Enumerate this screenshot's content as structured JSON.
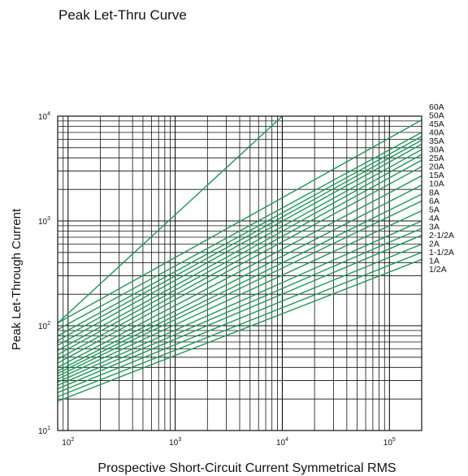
{
  "chart_data": {
    "type": "line",
    "title": "Peak Let-Thru Curve",
    "xlabel": "Prospective Short-Circuit Current Symmetrical RMS",
    "ylabel": "Peak Let-Through Current",
    "x_scale": "log",
    "y_scale": "log",
    "xlim": [
      80,
      200000
    ],
    "ylim": [
      10,
      10000
    ],
    "x_ticks": [
      {
        "base": "10",
        "exp": "2",
        "value": 100
      },
      {
        "base": "10",
        "exp": "3",
        "value": 1000
      },
      {
        "base": "10",
        "exp": "4",
        "value": 10000
      },
      {
        "base": "10",
        "exp": "5",
        "value": 100000
      }
    ],
    "y_ticks": [
      {
        "base": "10",
        "exp": "1",
        "value": 10
      },
      {
        "base": "10",
        "exp": "2",
        "value": 100
      },
      {
        "base": "10",
        "exp": "3",
        "value": 1000
      },
      {
        "base": "10",
        "exp": "4",
        "value": 10000
      }
    ],
    "grid": true,
    "line_color": "#1a9a55",
    "asymptote": {
      "x": [
        80,
        10000
      ],
      "y": [
        106,
        10000
      ]
    },
    "series": [
      {
        "name": "60A",
        "x": [
          80,
          200000
        ],
        "y": [
          106,
          9200
        ]
      },
      {
        "name": "50A",
        "x": [
          80,
          200000
        ],
        "y": [
          92,
          7000
        ]
      },
      {
        "name": "45A",
        "x": [
          80,
          200000
        ],
        "y": [
          80,
          6400
        ]
      },
      {
        "name": "40A",
        "x": [
          80,
          200000
        ],
        "y": [
          72,
          5900
        ]
      },
      {
        "name": "35A",
        "x": [
          80,
          200000
        ],
        "y": [
          65,
          5400
        ]
      },
      {
        "name": "30A",
        "x": [
          80,
          200000
        ],
        "y": [
          58,
          4800
        ]
      },
      {
        "name": "25A",
        "x": [
          80,
          200000
        ],
        "y": [
          53,
          4300
        ]
      },
      {
        "name": "20A",
        "x": [
          80,
          200000
        ],
        "y": [
          48,
          3800
        ]
      },
      {
        "name": "15A",
        "x": [
          80,
          200000
        ],
        "y": [
          44,
          3300
        ]
      },
      {
        "name": "10A",
        "x": [
          80,
          200000
        ],
        "y": [
          40,
          2700
        ]
      },
      {
        "name": "8A",
        "x": [
          80,
          200000
        ],
        "y": [
          37,
          2200
        ]
      },
      {
        "name": "6A",
        "x": [
          80,
          200000
        ],
        "y": [
          35,
          1800
        ]
      },
      {
        "name": "5A",
        "x": [
          80,
          200000
        ],
        "y": [
          33,
          1550
        ]
      },
      {
        "name": "4A",
        "x": [
          80,
          200000
        ],
        "y": [
          31,
          1250
        ]
      },
      {
        "name": "3A",
        "x": [
          80,
          200000
        ],
        "y": [
          29,
          1000
        ]
      },
      {
        "name": "2-1/2A",
        "x": [
          80,
          200000
        ],
        "y": [
          27,
          850
        ]
      },
      {
        "name": "2A",
        "x": [
          80,
          200000
        ],
        "y": [
          25,
          730
        ]
      },
      {
        "name": "1-1/2A",
        "x": [
          80,
          200000
        ],
        "y": [
          23,
          600
        ]
      },
      {
        "name": "1A",
        "x": [
          80,
          200000
        ],
        "y": [
          21,
          500
        ]
      },
      {
        "name": "1/2A",
        "x": [
          80,
          200000
        ],
        "y": [
          19,
          430
        ]
      }
    ]
  }
}
